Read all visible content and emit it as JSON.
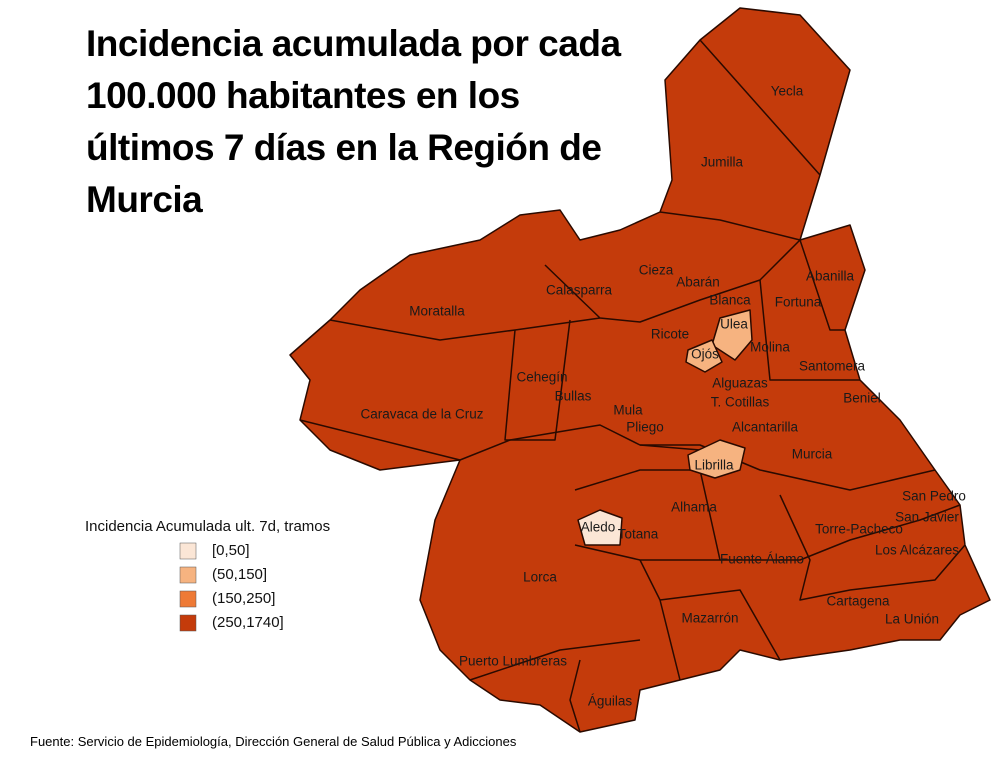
{
  "map": {
    "title": "Incidencia acumulada por cada 100.000 habitantes en los últimos 7 días en la Región de Murcia",
    "legend": {
      "title": "Incidencia Acumulada ult. 7d, tramos",
      "items": [
        {
          "label": "[0,50]",
          "color": "#fbe6d6"
        },
        {
          "label": "(50,150]",
          "color": "#f6b380"
        },
        {
          "label": "(150,250]",
          "color": "#ee7a36"
        },
        {
          "label": "(250,1740]",
          "color": "#c43b0b"
        }
      ]
    },
    "municipalities": [
      "Yecla",
      "Jumilla",
      "Abanilla",
      "Cieza",
      "Abarán",
      "Blanca",
      "Fortuna",
      "Calasparra",
      "Moratalla",
      "Ulea",
      "Ricote",
      "Molina",
      "Ojós",
      "Santomera",
      "Cehegín",
      "Bullas",
      "Alguazas",
      "Beniel",
      "Caravaca de la Cruz",
      "Mula",
      "T. Cotillas",
      "Pliego",
      "Alcantarilla",
      "Murcia",
      "Librilla",
      "Alhama",
      "San Pedro",
      "San Javier",
      "Aledo",
      "Totana",
      "Torre-Pacheco",
      "Los Alcázares",
      "Fuente Álamo",
      "Lorca",
      "Cartagena",
      "La Unión",
      "Mazarrón",
      "Puerto Lumbreras",
      "Águilas"
    ],
    "source": "Fuente: Servicio de Epidemiología, Dirección General de Salud Pública y Adicciones"
  }
}
